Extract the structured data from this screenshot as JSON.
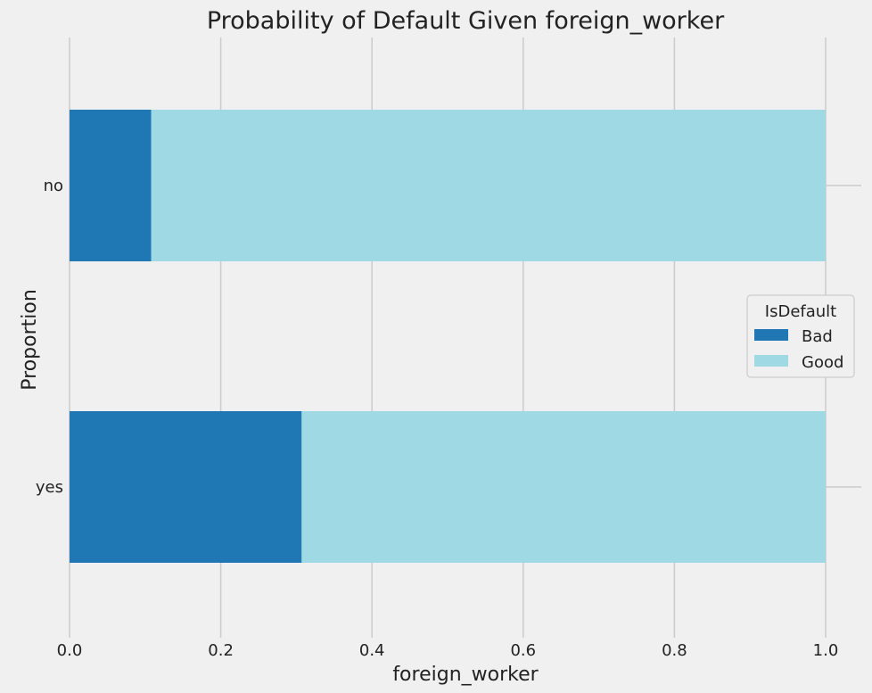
{
  "chart_data": {
    "type": "bar",
    "orientation": "horizontal",
    "stacked": true,
    "title": "Probability of Default Given foreign_worker",
    "xlabel": "foreign_worker",
    "ylabel": "Proportion",
    "categories": [
      "no",
      "yes"
    ],
    "series": [
      {
        "name": "Bad",
        "color": "#1f77b4",
        "values": [
          0.108,
          0.307
        ]
      },
      {
        "name": "Good",
        "color": "#9fd9e4",
        "values": [
          0.892,
          0.693
        ]
      }
    ],
    "xlim": [
      0,
      1.0
    ],
    "xticks": [
      "0.0",
      "0.2",
      "0.4",
      "0.6",
      "0.8",
      "1.0"
    ],
    "grid": true,
    "legend": {
      "title": "IsDefault",
      "position": "center-right"
    }
  }
}
